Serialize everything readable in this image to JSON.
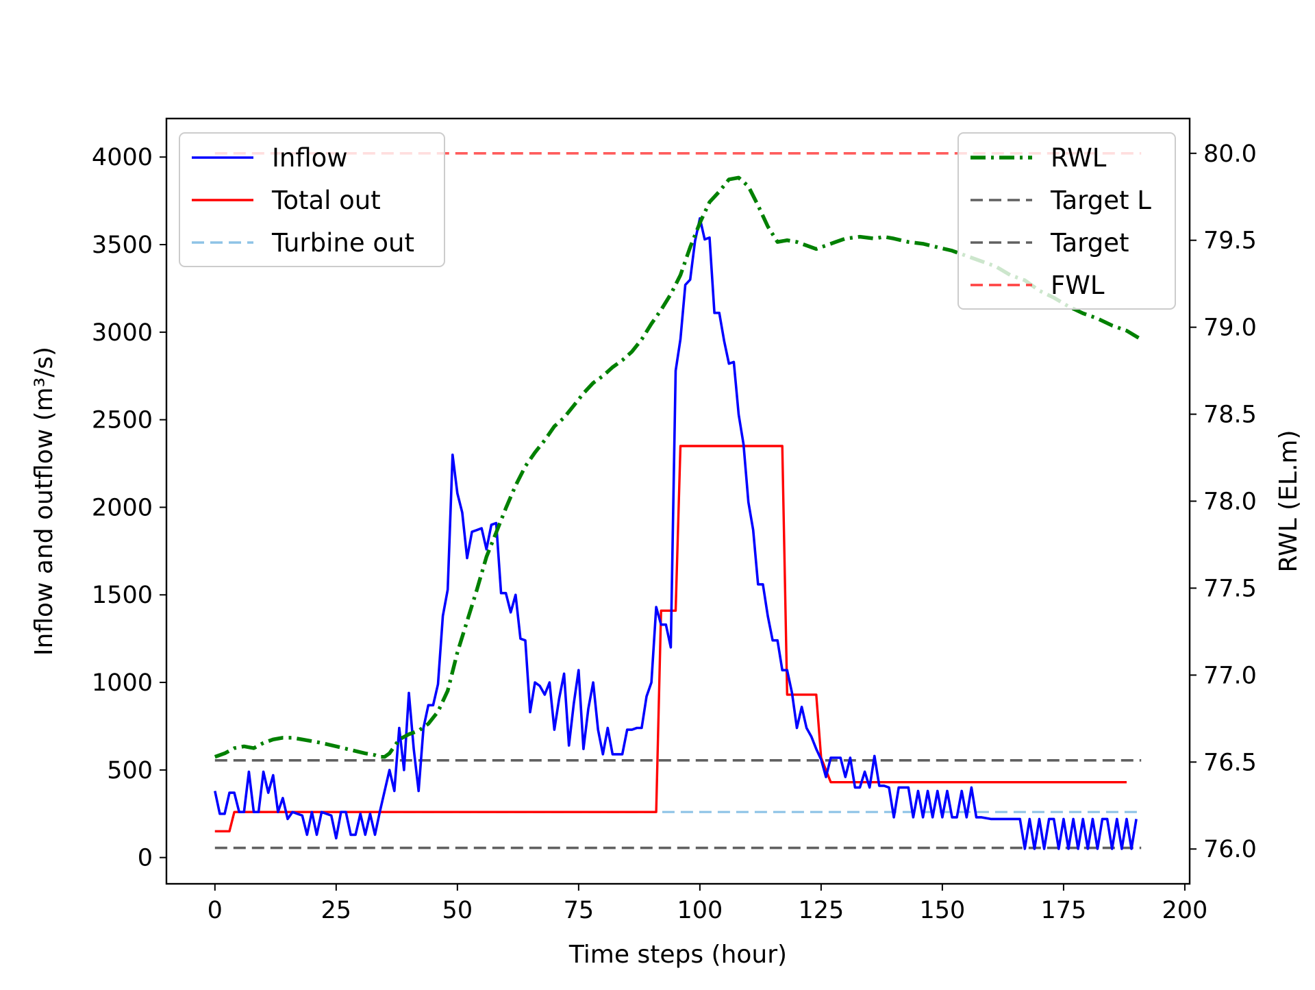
{
  "chart_data": {
    "type": "line",
    "xlabel": "Time steps (hour)",
    "ylabel_left": "Inflow and outflow (m³/s)",
    "ylabel_right": "RWL (EL.m)",
    "xlim": [
      -10,
      201
    ],
    "ylim_left": [
      -150,
      4220
    ],
    "ylim_right": [
      75.8,
      80.2
    ],
    "x_ticks": [
      0,
      25,
      50,
      75,
      100,
      125,
      150,
      175,
      200
    ],
    "y_ticks_left": [
      0,
      500,
      1000,
      1500,
      2000,
      2500,
      3000,
      3500,
      4000
    ],
    "y_ticks_right": [
      76.0,
      76.5,
      77.0,
      77.5,
      78.0,
      78.5,
      79.0,
      79.5,
      80.0
    ],
    "grid": false,
    "legend_left": {
      "placement": "top-left",
      "entries": [
        {
          "label": "Inflow",
          "color": "#0000ff",
          "style": "solid"
        },
        {
          "label": "Total out",
          "color": "#ff0000",
          "style": "solid"
        },
        {
          "label": "Turbine out",
          "color": "#8ec3e6",
          "style": "dashed"
        }
      ]
    },
    "legend_right": {
      "placement": "top-right",
      "entries": [
        {
          "label": "RWL",
          "color": "#008000",
          "style": "dashdot"
        },
        {
          "label": "Target L",
          "color": "#606060",
          "style": "dashed"
        },
        {
          "label": "Target",
          "color": "#606060",
          "style": "dashed"
        },
        {
          "label": "FWL",
          "color": "#ff4040",
          "style": "dashed"
        }
      ]
    },
    "series": [
      {
        "name": "Inflow",
        "axis": "left",
        "color": "#0000ff",
        "points": [
          [
            0,
            380
          ],
          [
            1,
            250
          ],
          [
            2,
            250
          ],
          [
            3,
            370
          ],
          [
            4,
            370
          ],
          [
            5,
            260
          ],
          [
            6,
            260
          ],
          [
            7,
            490
          ],
          [
            8,
            260
          ],
          [
            9,
            260
          ],
          [
            10,
            490
          ],
          [
            11,
            370
          ],
          [
            12,
            470
          ],
          [
            13,
            260
          ],
          [
            14,
            340
          ],
          [
            15,
            220
          ],
          [
            16,
            260
          ],
          [
            17,
            250
          ],
          [
            18,
            240
          ],
          [
            19,
            130
          ],
          [
            20,
            260
          ],
          [
            21,
            130
          ],
          [
            22,
            260
          ],
          [
            23,
            250
          ],
          [
            24,
            240
          ],
          [
            25,
            110
          ],
          [
            26,
            260
          ],
          [
            27,
            260
          ],
          [
            28,
            130
          ],
          [
            29,
            130
          ],
          [
            30,
            250
          ],
          [
            31,
            130
          ],
          [
            32,
            250
          ],
          [
            33,
            130
          ],
          [
            34,
            260
          ],
          [
            35,
            380
          ],
          [
            36,
            500
          ],
          [
            37,
            380
          ],
          [
            38,
            740
          ],
          [
            39,
            500
          ],
          [
            40,
            940
          ],
          [
            41,
            620
          ],
          [
            42,
            380
          ],
          [
            43,
            740
          ],
          [
            44,
            870
          ],
          [
            45,
            870
          ],
          [
            46,
            990
          ],
          [
            47,
            1380
          ],
          [
            48,
            1530
          ],
          [
            49,
            2300
          ],
          [
            50,
            2080
          ],
          [
            51,
            1970
          ],
          [
            52,
            1710
          ],
          [
            53,
            1860
          ],
          [
            54,
            1870
          ],
          [
            55,
            1880
          ],
          [
            56,
            1760
          ],
          [
            57,
            1900
          ],
          [
            58,
            1910
          ],
          [
            59,
            1510
          ],
          [
            60,
            1510
          ],
          [
            61,
            1400
          ],
          [
            62,
            1500
          ],
          [
            63,
            1250
          ],
          [
            64,
            1240
          ],
          [
            65,
            830
          ],
          [
            66,
            1000
          ],
          [
            67,
            980
          ],
          [
            68,
            930
          ],
          [
            69,
            1000
          ],
          [
            70,
            730
          ],
          [
            71,
            910
          ],
          [
            72,
            1050
          ],
          [
            73,
            640
          ],
          [
            74,
            880
          ],
          [
            75,
            1070
          ],
          [
            76,
            620
          ],
          [
            77,
            850
          ],
          [
            78,
            1000
          ],
          [
            79,
            730
          ],
          [
            80,
            590
          ],
          [
            81,
            740
          ],
          [
            82,
            590
          ],
          [
            83,
            590
          ],
          [
            84,
            590
          ],
          [
            85,
            730
          ],
          [
            86,
            730
          ],
          [
            87,
            740
          ],
          [
            88,
            740
          ],
          [
            89,
            920
          ],
          [
            90,
            1000
          ],
          [
            91,
            1430
          ],
          [
            92,
            1330
          ],
          [
            93,
            1330
          ],
          [
            94,
            1200
          ],
          [
            95,
            2780
          ],
          [
            96,
            2960
          ],
          [
            97,
            3270
          ],
          [
            98,
            3300
          ],
          [
            99,
            3520
          ],
          [
            100,
            3650
          ],
          [
            101,
            3530
          ],
          [
            102,
            3540
          ],
          [
            103,
            3110
          ],
          [
            104,
            3110
          ],
          [
            105,
            2950
          ],
          [
            106,
            2820
          ],
          [
            107,
            2830
          ],
          [
            108,
            2530
          ],
          [
            109,
            2360
          ],
          [
            110,
            2030
          ],
          [
            111,
            1870
          ],
          [
            112,
            1560
          ],
          [
            113,
            1560
          ],
          [
            114,
            1380
          ],
          [
            115,
            1240
          ],
          [
            116,
            1240
          ],
          [
            117,
            1070
          ],
          [
            118,
            1070
          ],
          [
            119,
            940
          ],
          [
            120,
            740
          ],
          [
            121,
            860
          ],
          [
            122,
            740
          ],
          [
            123,
            690
          ],
          [
            124,
            620
          ],
          [
            125,
            560
          ],
          [
            126,
            460
          ],
          [
            127,
            570
          ],
          [
            128,
            570
          ],
          [
            129,
            570
          ],
          [
            130,
            460
          ],
          [
            131,
            570
          ],
          [
            132,
            400
          ],
          [
            133,
            400
          ],
          [
            134,
            490
          ],
          [
            135,
            400
          ],
          [
            136,
            580
          ],
          [
            137,
            410
          ],
          [
            138,
            410
          ],
          [
            139,
            400
          ],
          [
            140,
            230
          ],
          [
            141,
            400
          ],
          [
            142,
            400
          ],
          [
            143,
            400
          ],
          [
            144,
            230
          ],
          [
            145,
            380
          ],
          [
            146,
            230
          ],
          [
            147,
            380
          ],
          [
            148,
            230
          ],
          [
            149,
            380
          ],
          [
            150,
            230
          ],
          [
            151,
            380
          ],
          [
            152,
            230
          ],
          [
            153,
            230
          ],
          [
            154,
            380
          ],
          [
            155,
            230
          ],
          [
            156,
            400
          ],
          [
            157,
            230
          ],
          [
            158,
            230
          ],
          [
            160,
            220
          ],
          [
            163,
            220
          ],
          [
            165,
            220
          ],
          [
            166,
            220
          ],
          [
            167,
            50
          ],
          [
            168,
            220
          ],
          [
            169,
            50
          ],
          [
            170,
            220
          ],
          [
            171,
            50
          ],
          [
            172,
            220
          ],
          [
            173,
            220
          ],
          [
            174,
            50
          ],
          [
            175,
            220
          ],
          [
            176,
            50
          ],
          [
            177,
            220
          ],
          [
            178,
            50
          ],
          [
            179,
            220
          ],
          [
            180,
            50
          ],
          [
            181,
            220
          ],
          [
            182,
            50
          ],
          [
            183,
            220
          ],
          [
            184,
            220
          ],
          [
            185,
            50
          ],
          [
            186,
            220
          ],
          [
            187,
            50
          ],
          [
            188,
            220
          ],
          [
            189,
            50
          ],
          [
            190,
            220
          ]
        ]
      },
      {
        "name": "Total out",
        "axis": "left",
        "color": "#ff0000",
        "points": [
          [
            0,
            150
          ],
          [
            2,
            150
          ],
          [
            3,
            150
          ],
          [
            4,
            260
          ],
          [
            91,
            260
          ],
          [
            92,
            1410
          ],
          [
            95,
            1410
          ],
          [
            96,
            2350
          ],
          [
            117,
            2350
          ],
          [
            118,
            930
          ],
          [
            124,
            930
          ],
          [
            125,
            570
          ],
          [
            127,
            430
          ],
          [
            188,
            430
          ]
        ]
      },
      {
        "name": "Turbine out",
        "axis": "left",
        "color": "#8ec3e6",
        "points": [
          [
            0,
            150
          ],
          [
            3,
            150
          ],
          [
            4,
            260
          ],
          [
            191,
            260
          ]
        ]
      },
      {
        "name": "RWL",
        "axis": "right",
        "color": "#008000",
        "points": [
          [
            0,
            76.53
          ],
          [
            2,
            76.55
          ],
          [
            4,
            76.58
          ],
          [
            6,
            76.59
          ],
          [
            8,
            76.58
          ],
          [
            10,
            76.61
          ],
          [
            12,
            76.63
          ],
          [
            14,
            76.64
          ],
          [
            16,
            76.64
          ],
          [
            18,
            76.63
          ],
          [
            20,
            76.62
          ],
          [
            22,
            76.61
          ],
          [
            25,
            76.59
          ],
          [
            28,
            76.57
          ],
          [
            31,
            76.55
          ],
          [
            33,
            76.54
          ],
          [
            34,
            76.53
          ],
          [
            35,
            76.53
          ],
          [
            36,
            76.55
          ],
          [
            38,
            76.63
          ],
          [
            40,
            76.66
          ],
          [
            42,
            76.68
          ],
          [
            44,
            76.72
          ],
          [
            46,
            76.79
          ],
          [
            48,
            76.91
          ],
          [
            50,
            77.13
          ],
          [
            52,
            77.31
          ],
          [
            54,
            77.49
          ],
          [
            56,
            77.68
          ],
          [
            58,
            77.82
          ],
          [
            60,
            77.96
          ],
          [
            62,
            78.09
          ],
          [
            64,
            78.2
          ],
          [
            66,
            78.28
          ],
          [
            68,
            78.35
          ],
          [
            70,
            78.43
          ],
          [
            72,
            78.48
          ],
          [
            74,
            78.55
          ],
          [
            76,
            78.62
          ],
          [
            78,
            78.68
          ],
          [
            80,
            78.72
          ],
          [
            82,
            78.77
          ],
          [
            84,
            78.81
          ],
          [
            86,
            78.86
          ],
          [
            88,
            78.93
          ],
          [
            90,
            79.02
          ],
          [
            92,
            79.1
          ],
          [
            94,
            79.19
          ],
          [
            96,
            79.3
          ],
          [
            98,
            79.46
          ],
          [
            100,
            79.6
          ],
          [
            102,
            79.72
          ],
          [
            104,
            79.78
          ],
          [
            106,
            79.85
          ],
          [
            108,
            79.86
          ],
          [
            110,
            79.81
          ],
          [
            112,
            79.7
          ],
          [
            114,
            79.58
          ],
          [
            116,
            79.49
          ],
          [
            118,
            79.5
          ],
          [
            120,
            79.49
          ],
          [
            122,
            79.47
          ],
          [
            124,
            79.45
          ],
          [
            126,
            79.47
          ],
          [
            128,
            79.49
          ],
          [
            130,
            79.51
          ],
          [
            133,
            79.52
          ],
          [
            136,
            79.51
          ],
          [
            138,
            79.52
          ],
          [
            140,
            79.51
          ],
          [
            143,
            79.49
          ],
          [
            146,
            79.48
          ],
          [
            149,
            79.46
          ],
          [
            152,
            79.44
          ],
          [
            155,
            79.41
          ],
          [
            158,
            79.38
          ],
          [
            161,
            79.35
          ],
          [
            164,
            79.3
          ],
          [
            167,
            79.27
          ],
          [
            170,
            79.21
          ],
          [
            173,
            79.17
          ],
          [
            176,
            79.12
          ],
          [
            179,
            79.08
          ],
          [
            182,
            79.05
          ],
          [
            185,
            79.01
          ],
          [
            188,
            78.98
          ],
          [
            191,
            78.93
          ]
        ]
      },
      {
        "name": "Target L",
        "axis": "left",
        "color": "#606060",
        "points": [
          [
            0,
            55
          ],
          [
            191,
            55
          ]
        ]
      },
      {
        "name": "Target",
        "axis": "left",
        "color": "#606060",
        "points": [
          [
            0,
            555
          ],
          [
            191,
            555
          ]
        ]
      },
      {
        "name": "FWL",
        "axis": "right",
        "color": "#ff4040",
        "points": [
          [
            0,
            80.0
          ],
          [
            191,
            80.0
          ]
        ]
      }
    ]
  }
}
